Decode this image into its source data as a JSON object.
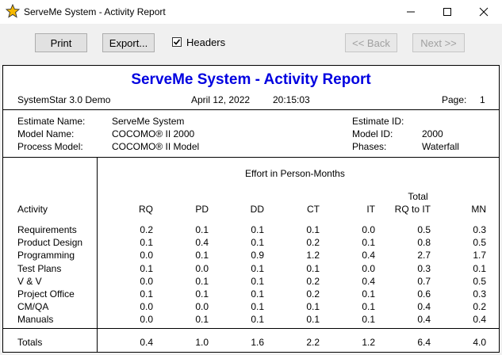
{
  "window": {
    "title": "ServeMe System - Activity Report",
    "app_icon": "star-icon"
  },
  "toolbar": {
    "print": "Print",
    "export": "Export...",
    "headers_label": "Headers",
    "headers_checked": true,
    "back": "<< Back",
    "next": "Next >>"
  },
  "report": {
    "title": "ServeMe System - Activity Report",
    "version": "SystemStar 3.0 Demo",
    "date": "April 12, 2022",
    "time": "20:15:03",
    "page_label": "Page:",
    "page_number": "1",
    "info": {
      "estimate_name_label": "Estimate Name:",
      "estimate_name": "ServeMe System",
      "model_name_label": "Model Name:",
      "model_name": "COCOMO® II 2000",
      "process_model_label": "Process Model:",
      "process_model": "COCOMO® II Model",
      "estimate_id_label": "Estimate ID:",
      "estimate_id": "",
      "model_id_label": "Model ID:",
      "model_id": "2000",
      "phases_label": "Phases:",
      "phases": "Waterfall"
    },
    "table": {
      "group_header": "Effort in Person-Months",
      "activity_header": "Activity",
      "columns": [
        "RQ",
        "PD",
        "DD",
        "CT",
        "IT",
        "RQ to IT",
        "MN"
      ],
      "total_label_top": "Total",
      "rows": [
        {
          "activity": "Requirements",
          "values": [
            "0.2",
            "0.1",
            "0.1",
            "0.1",
            "0.0",
            "0.5",
            "0.3"
          ]
        },
        {
          "activity": "Product Design",
          "values": [
            "0.1",
            "0.4",
            "0.1",
            "0.2",
            "0.1",
            "0.8",
            "0.5"
          ]
        },
        {
          "activity": "Programming",
          "values": [
            "0.0",
            "0.1",
            "0.9",
            "1.2",
            "0.4",
            "2.7",
            "1.7"
          ]
        },
        {
          "activity": "Test Plans",
          "values": [
            "0.1",
            "0.0",
            "0.1",
            "0.1",
            "0.0",
            "0.3",
            "0.1"
          ]
        },
        {
          "activity": "V & V",
          "values": [
            "0.0",
            "0.1",
            "0.1",
            "0.2",
            "0.4",
            "0.7",
            "0.5"
          ]
        },
        {
          "activity": "Project Office",
          "values": [
            "0.1",
            "0.1",
            "0.1",
            "0.2",
            "0.1",
            "0.6",
            "0.3"
          ]
        },
        {
          "activity": "CM/QA",
          "values": [
            "0.0",
            "0.0",
            "0.1",
            "0.1",
            "0.1",
            "0.4",
            "0.2"
          ]
        },
        {
          "activity": "Manuals",
          "values": [
            "0.0",
            "0.1",
            "0.1",
            "0.1",
            "0.1",
            "0.4",
            "0.4"
          ]
        }
      ],
      "totals": {
        "label": "Totals",
        "values": [
          "0.4",
          "1.0",
          "1.6",
          "2.2",
          "1.2",
          "6.4",
          "4.0"
        ]
      }
    }
  }
}
